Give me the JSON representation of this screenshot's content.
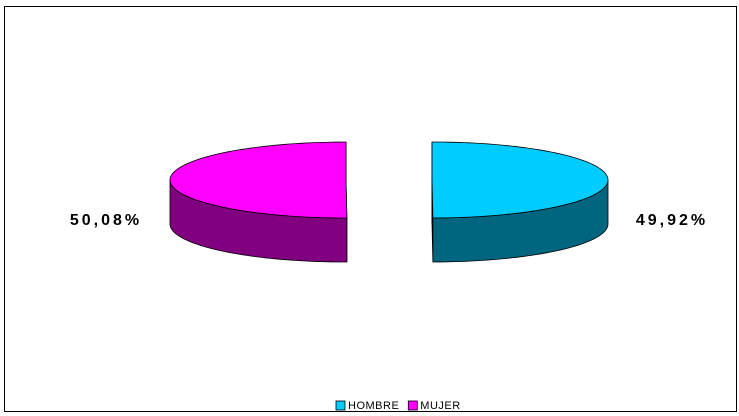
{
  "chart_data": {
    "type": "pie3d",
    "categories": [
      "HOMBRE",
      "MUJER"
    ],
    "values": [
      49.92,
      50.08
    ],
    "value_labels": [
      "49,92%",
      "50,08%"
    ],
    "colors": [
      "#00ccff",
      "#ff00ff"
    ],
    "legend": "bottom"
  }
}
